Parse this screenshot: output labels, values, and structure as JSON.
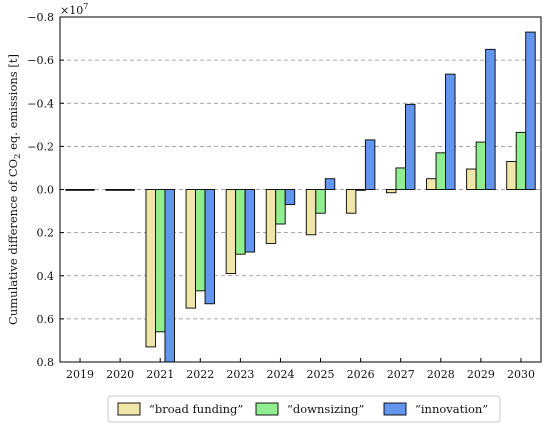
{
  "chart_data": {
    "type": "bar",
    "categories": [
      "2019",
      "2020",
      "2021",
      "2022",
      "2023",
      "2024",
      "2025",
      "2026",
      "2027",
      "2028",
      "2029",
      "2030"
    ],
    "series": [
      {
        "name": "“broad funding”",
        "color": "#f0e6a8",
        "values": [
          0,
          0,
          0.73,
          0.55,
          0.39,
          0.25,
          0.21,
          0.11,
          0.015,
          -0.05,
          -0.095,
          -0.13
        ]
      },
      {
        "name": "“downsizing”",
        "color": "#90ee90",
        "values": [
          0,
          0,
          0.66,
          0.47,
          0.3,
          0.16,
          0.11,
          0,
          -0.1,
          -0.17,
          -0.22,
          -0.265
        ]
      },
      {
        "name": "“innovation”",
        "color": "#6495ed",
        "values": [
          0,
          0,
          0.8,
          0.53,
          0.29,
          0.07,
          -0.05,
          -0.23,
          -0.395,
          -0.535,
          -0.65,
          -0.73
        ]
      }
    ],
    "yticks": [
      -0.8,
      -0.6,
      -0.4,
      -0.2,
      0.0,
      0.2,
      0.4,
      0.6,
      0.8
    ],
    "ytick_labels": [
      "−0.8",
      "−0.6",
      "−0.4",
      "−0.2",
      "0.0",
      "0.2",
      "0.4",
      "0.6",
      "0.8"
    ],
    "ylim": [
      -0.8,
      0.8
    ],
    "y_inverted": true,
    "multiplier": "×10",
    "multiplier_exp": "7",
    "ylabel_prefix": "Cumulative difference of CO",
    "ylabel_sub": "2",
    "ylabel_suffix": " eq. emissions [t]",
    "grid": "horizontal-dashed",
    "legend_position": "bottom"
  }
}
